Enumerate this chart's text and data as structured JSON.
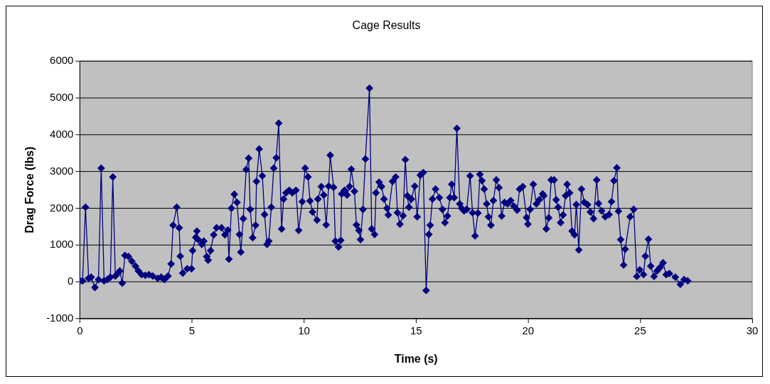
{
  "chart_data": {
    "type": "line",
    "title": "Cage Results",
    "xlabel": "Time (s)",
    "ylabel": "Drag Force (lbs)",
    "xlim": [
      0,
      30
    ],
    "xticks": [
      0,
      5,
      10,
      15,
      20,
      25,
      30
    ],
    "ylim": [
      -1000,
      6000
    ],
    "yticks": [
      -1000,
      0,
      1000,
      2000,
      3000,
      4000,
      5000,
      6000
    ],
    "grid": "y",
    "legend": false,
    "marker": "diamond",
    "line_style": "solid",
    "series": [
      {
        "color": "#000080",
        "x": [
          0,
          0.12,
          0.25,
          0.39,
          0.5,
          0.67,
          0.83,
          0.95,
          1.08,
          1.22,
          1.36,
          1.47,
          1.58,
          1.69,
          1.78,
          1.89,
          2.01,
          2.17,
          2.32,
          2.48,
          2.61,
          2.75,
          2.92,
          3.08,
          3.25,
          3.47,
          3.63,
          3.77,
          3.93,
          4.07,
          4.16,
          4.32,
          4.43,
          4.48,
          4.59,
          4.79,
          4.98,
          5.03,
          5.17,
          5.22,
          5.28,
          5.44,
          5.53,
          5.66,
          5.72,
          5.83,
          5.97,
          6.1,
          6.32,
          6.47,
          6.6,
          6.65,
          6.76,
          6.89,
          7.01,
          7.12,
          7.18,
          7.29,
          7.42,
          7.53,
          7.6,
          7.71,
          7.84,
          7.88,
          8,
          8.14,
          8.24,
          8.35,
          8.43,
          8.54,
          8.65,
          8.76,
          8.87,
          9,
          9.09,
          9.2,
          9.34,
          9.48,
          9.64,
          9.76,
          9.92,
          10.05,
          10.18,
          10.27,
          10.38,
          10.58,
          10.62,
          10.77,
          10.88,
          10.99,
          11.1,
          11.17,
          11.32,
          11.4,
          11.54,
          11.64,
          11.68,
          11.81,
          11.92,
          12.03,
          12.11,
          12.25,
          12.34,
          12.45,
          12.52,
          12.63,
          12.74,
          12.92,
          13.02,
          13.15,
          13.21,
          13.35,
          13.46,
          13.57,
          13.7,
          13.76,
          13.95,
          14.09,
          14.17,
          14.28,
          14.42,
          14.52,
          14.61,
          14.68,
          14.79,
          14.94,
          15.05,
          15.19,
          15.32,
          15.45,
          15.57,
          15.63,
          15.73,
          15.87,
          16.04,
          16.18,
          16.29,
          16.4,
          16.51,
          16.59,
          16.7,
          16.82,
          16.95,
          17.03,
          17.14,
          17.26,
          17.41,
          17.52,
          17.63,
          17.76,
          17.85,
          17.94,
          18.04,
          18.15,
          18.23,
          18.34,
          18.45,
          18.58,
          18.7,
          18.82,
          18.95,
          19.08,
          19.22,
          19.36,
          19.51,
          19.62,
          19.76,
          19.93,
          19.99,
          20.09,
          20.23,
          20.37,
          20.5,
          20.65,
          20.7,
          20.81,
          20.92,
          21.03,
          21.16,
          21.25,
          21.34,
          21.45,
          21.56,
          21.67,
          21.74,
          21.85,
          21.96,
          22.07,
          22.15,
          22.26,
          22.38,
          22.51,
          22.65,
          22.78,
          22.92,
          23.06,
          23.14,
          23.28,
          23.44,
          23.61,
          23.72,
          23.83,
          23.96,
          24.03,
          24.13,
          24.26,
          24.33,
          24.55,
          24.71,
          24.85,
          24.98,
          25.15,
          25.23,
          25.37,
          25.47,
          25.62,
          25.75,
          25.88,
          26.02,
          26.16,
          26.3,
          26.57,
          26.79,
          26.96,
          27.12
        ],
        "values": [
          30,
          30,
          2030,
          100,
          130,
          -150,
          65,
          3090,
          30,
          65,
          130,
          2850,
          160,
          230,
          300,
          -30,
          720,
          690,
          560,
          430,
          300,
          200,
          180,
          200,
          160,
          100,
          130,
          65,
          160,
          490,
          1540,
          2030,
          1470,
          700,
          240,
          360,
          360,
          850,
          1210,
          1380,
          1150,
          1020,
          1110,
          690,
          590,
          850,
          1280,
          1470,
          1470,
          1280,
          1410,
          620,
          2000,
          2380,
          2160,
          1290,
          810,
          1720,
          3050,
          3360,
          1970,
          1200,
          1540,
          2730,
          3610,
          2880,
          1830,
          1020,
          1110,
          2030,
          3090,
          3370,
          4310,
          1440,
          2250,
          2420,
          2490,
          2420,
          2490,
          1400,
          2180,
          3090,
          2850,
          2200,
          1900,
          1680,
          2250,
          2590,
          2360,
          1550,
          2600,
          3440,
          2570,
          1110,
          950,
          1130,
          2390,
          2490,
          2360,
          2590,
          3060,
          2460,
          1550,
          1400,
          1150,
          1970,
          3340,
          5260,
          1440,
          1290,
          2420,
          2710,
          2590,
          2250,
          2000,
          1820,
          2730,
          2850,
          1880,
          1570,
          1800,
          3320,
          2340,
          2030,
          2250,
          2600,
          1770,
          2900,
          2970,
          -230,
          1290,
          1540,
          2250,
          2520,
          2290,
          1970,
          1610,
          1790,
          2290,
          2650,
          2290,
          4170,
          2120,
          2000,
          1930,
          1970,
          2880,
          1880,
          1250,
          1870,
          2920,
          2750,
          2520,
          2120,
          1770,
          1540,
          2210,
          2770,
          2560,
          1790,
          2160,
          2120,
          2210,
          2060,
          1950,
          2520,
          2590,
          1750,
          1570,
          1970,
          2650,
          2120,
          2230,
          2390,
          2340,
          1440,
          1740,
          2770,
          2770,
          2230,
          2030,
          1610,
          1820,
          2340,
          2650,
          2420,
          1380,
          1280,
          2100,
          870,
          2520,
          2160,
          2100,
          1900,
          1720,
          2770,
          2130,
          1930,
          1770,
          1830,
          2180,
          2750,
          3100,
          1920,
          1150,
          460,
          890,
          1770,
          1970,
          150,
          330,
          200,
          700,
          1160,
          430,
          150,
          300,
          390,
          520,
          200,
          230,
          130,
          -65,
          65,
          30
        ]
      }
    ]
  }
}
